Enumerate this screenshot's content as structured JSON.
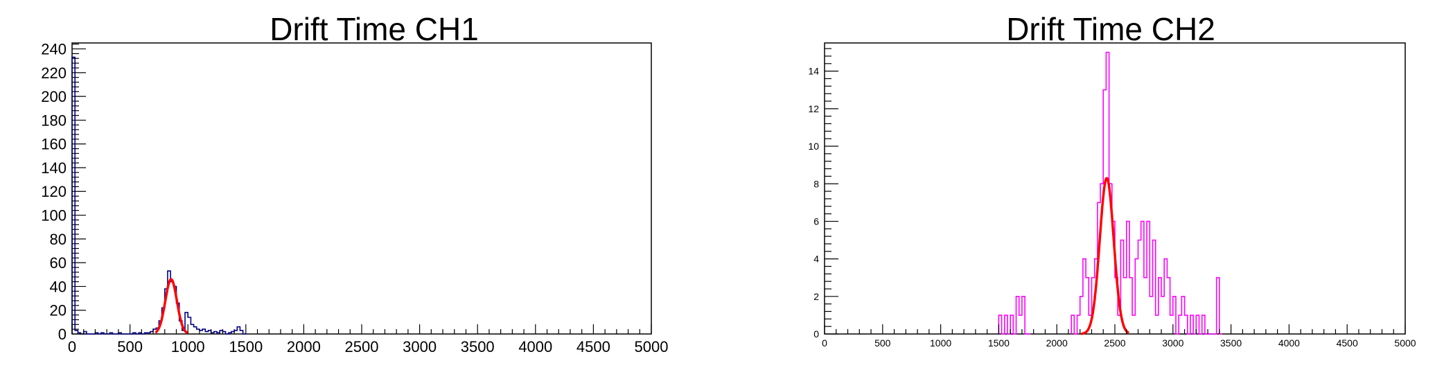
{
  "chart_data": [
    {
      "type": "bar",
      "title": "Drift Time CH1",
      "xlabel": "",
      "ylabel": "",
      "xlim": [
        0,
        5000
      ],
      "ylim": [
        0,
        245
      ],
      "x_ticks": [
        0,
        500,
        1000,
        1500,
        2000,
        2500,
        3000,
        3500,
        4000,
        4500,
        5000
      ],
      "y_ticks": [
        0,
        20,
        40,
        60,
        80,
        100,
        120,
        140,
        160,
        180,
        200,
        220,
        240
      ],
      "bin_width": 25,
      "grid": false,
      "hist_color": "#00008b",
      "fit_color": "#ff0000",
      "histogram": [
        [
          0,
          233
        ],
        [
          25,
          3
        ],
        [
          50,
          1
        ],
        [
          75,
          0
        ],
        [
          100,
          2
        ],
        [
          125,
          0
        ],
        [
          150,
          0
        ],
        [
          175,
          0
        ],
        [
          200,
          1
        ],
        [
          225,
          0
        ],
        [
          250,
          1
        ],
        [
          275,
          0
        ],
        [
          300,
          0
        ],
        [
          325,
          1
        ],
        [
          350,
          0
        ],
        [
          375,
          0
        ],
        [
          400,
          1
        ],
        [
          425,
          0
        ],
        [
          450,
          0
        ],
        [
          475,
          0
        ],
        [
          500,
          0
        ],
        [
          525,
          1
        ],
        [
          550,
          0
        ],
        [
          575,
          1
        ],
        [
          600,
          0
        ],
        [
          625,
          1
        ],
        [
          650,
          1
        ],
        [
          675,
          2
        ],
        [
          700,
          4
        ],
        [
          725,
          5
        ],
        [
          750,
          11
        ],
        [
          775,
          22
        ],
        [
          800,
          38
        ],
        [
          825,
          53
        ],
        [
          850,
          44
        ],
        [
          875,
          40
        ],
        [
          900,
          26
        ],
        [
          925,
          11
        ],
        [
          950,
          3
        ],
        [
          975,
          18
        ],
        [
          1000,
          14
        ],
        [
          1025,
          8
        ],
        [
          1050,
          6
        ],
        [
          1075,
          4
        ],
        [
          1100,
          3
        ],
        [
          1125,
          4
        ],
        [
          1150,
          2
        ],
        [
          1175,
          3
        ],
        [
          1200,
          1
        ],
        [
          1225,
          2
        ],
        [
          1250,
          1
        ],
        [
          1275,
          3
        ],
        [
          1300,
          2
        ],
        [
          1325,
          0
        ],
        [
          1350,
          1
        ],
        [
          1375,
          2
        ],
        [
          1400,
          3
        ],
        [
          1425,
          6
        ],
        [
          1450,
          3
        ],
        [
          1475,
          0
        ]
      ],
      "fit": {
        "type": "gaussian",
        "amplitude": 46,
        "mean": 855,
        "sigma": 50,
        "range": [
          720,
          1000
        ]
      }
    },
    {
      "type": "bar",
      "title": "Drift Time CH2",
      "xlabel": "",
      "ylabel": "",
      "xlim": [
        0,
        5000
      ],
      "ylim": [
        0,
        15.5
      ],
      "x_ticks": [
        0,
        500,
        1000,
        1500,
        2000,
        2500,
        3000,
        3500,
        4000,
        4500,
        5000
      ],
      "y_ticks": [
        0,
        2,
        4,
        6,
        8,
        10,
        12,
        14
      ],
      "bin_width": 25,
      "grid": false,
      "hist_color": "#ff00ff",
      "fit_color": "#ff0000",
      "histogram": [
        [
          1500,
          1
        ],
        [
          1525,
          0
        ],
        [
          1550,
          1
        ],
        [
          1575,
          0
        ],
        [
          1600,
          1
        ],
        [
          1625,
          0
        ],
        [
          1650,
          2
        ],
        [
          1675,
          1
        ],
        [
          1700,
          2
        ],
        [
          1725,
          0
        ],
        [
          1750,
          0
        ],
        [
          2125,
          1
        ],
        [
          2150,
          0
        ],
        [
          2175,
          1
        ],
        [
          2200,
          2
        ],
        [
          2225,
          4
        ],
        [
          2250,
          3
        ],
        [
          2275,
          1
        ],
        [
          2300,
          3
        ],
        [
          2325,
          4
        ],
        [
          2350,
          7
        ],
        [
          2375,
          8
        ],
        [
          2400,
          13
        ],
        [
          2425,
          15
        ],
        [
          2450,
          8
        ],
        [
          2475,
          6
        ],
        [
          2500,
          3
        ],
        [
          2525,
          1
        ],
        [
          2550,
          5
        ],
        [
          2575,
          3
        ],
        [
          2600,
          6
        ],
        [
          2625,
          3
        ],
        [
          2650,
          1
        ],
        [
          2675,
          4
        ],
        [
          2700,
          5
        ],
        [
          2725,
          6
        ],
        [
          2750,
          3
        ],
        [
          2775,
          6
        ],
        [
          2800,
          2
        ],
        [
          2825,
          5
        ],
        [
          2850,
          1
        ],
        [
          2875,
          3
        ],
        [
          2900,
          2
        ],
        [
          2925,
          4
        ],
        [
          2950,
          3
        ],
        [
          2975,
          1
        ],
        [
          3000,
          2
        ],
        [
          3025,
          0
        ],
        [
          3050,
          1
        ],
        [
          3075,
          2
        ],
        [
          3100,
          1
        ],
        [
          3125,
          0
        ],
        [
          3150,
          1
        ],
        [
          3175,
          0
        ],
        [
          3200,
          1
        ],
        [
          3225,
          0
        ],
        [
          3250,
          1
        ],
        [
          3275,
          0
        ],
        [
          3300,
          0
        ],
        [
          3325,
          0
        ],
        [
          3350,
          0
        ],
        [
          3375,
          3
        ],
        [
          3400,
          0
        ]
      ],
      "fit": {
        "type": "gaussian",
        "amplitude": 8.3,
        "mean": 2430,
        "sigma": 60,
        "range": [
          2210,
          2620
        ]
      }
    }
  ]
}
